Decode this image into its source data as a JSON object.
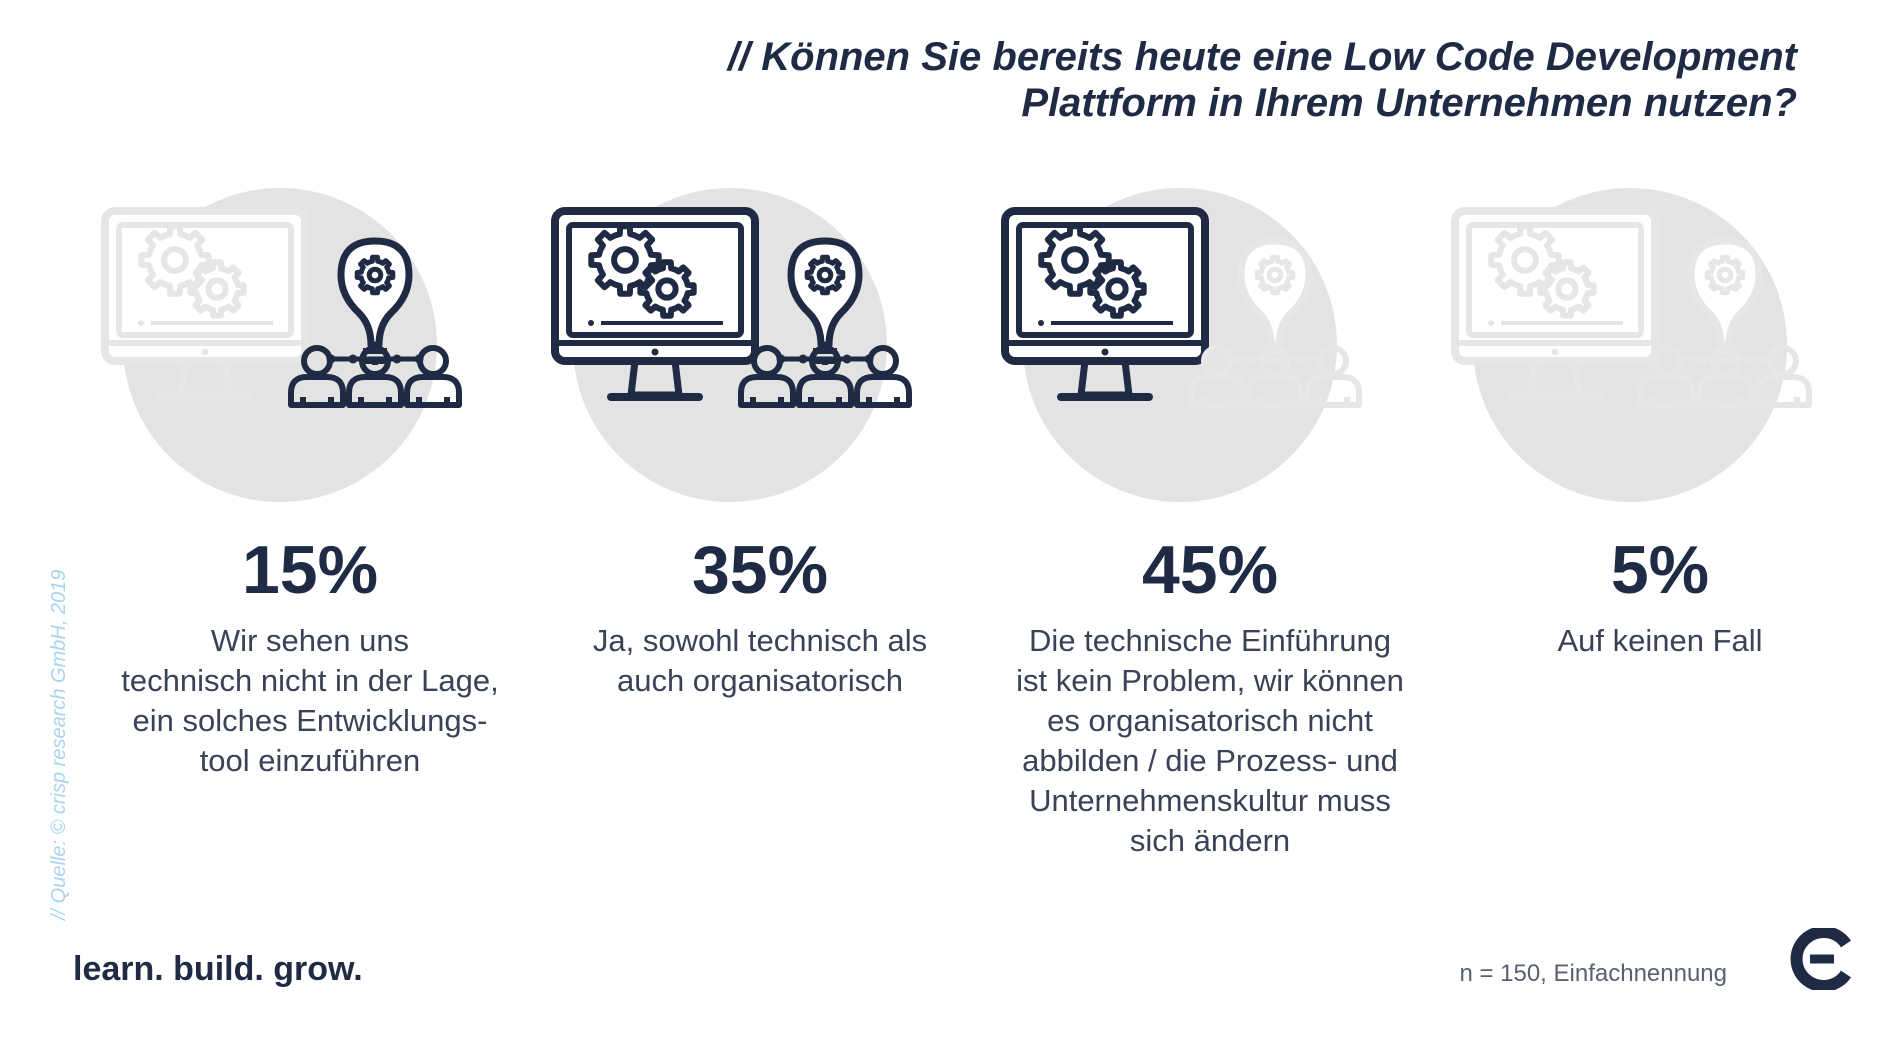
{
  "header": {
    "title_line1": "// Können Sie bereits heute eine Low Code Development",
    "title_line2": "Plattform in Ihrem Unternehmen nutzen?"
  },
  "chart_data": {
    "type": "bar",
    "title": "// Können Sie bereits heute eine Low Code Development Plattform in Ihrem Unternehmen nutzen?",
    "unit": "%",
    "categories": [
      "Wir sehen uns technisch nicht in der Lage, ein solches Entwicklungs-tool einzuführen",
      "Ja, sowohl technisch als auch organisatorisch",
      "Die technische Einführung ist kein Problem, wir können es organisatorisch nicht abbilden / die Prozess- und Unternehmenskultur muss sich ändern",
      "Auf keinen Fall"
    ],
    "values": [
      15,
      35,
      45,
      5
    ],
    "items": [
      {
        "percent": "15%",
        "label": "Wir sehen uns\ntechnisch nicht in der Lage,\nein solches Entwicklungs-\ntool einzuführen",
        "highlight": {
          "monitor": false,
          "bulb": true,
          "people": true
        }
      },
      {
        "percent": "35%",
        "label": "Ja, sowohl technisch als\nauch organisatorisch",
        "highlight": {
          "monitor": true,
          "bulb": true,
          "people": true
        }
      },
      {
        "percent": "45%",
        "label": "Die technische Einführung\nist kein Problem, wir können\nes organisatorisch nicht\nabbilden / die Prozess- und\nUnternehmenskultur muss\nsich ändern",
        "highlight": {
          "monitor": true,
          "bulb": false,
          "people": false
        }
      },
      {
        "percent": "5%",
        "label": "Auf keinen Fall",
        "highlight": {
          "monitor": false,
          "bulb": false,
          "people": false
        }
      }
    ]
  },
  "footer": {
    "source": "// Quelle: © crisp research GmbH, 2019",
    "slogan": "learn. build. grow.",
    "sample": "n = 150, Einfachnennung"
  },
  "colors": {
    "dark": "#1f2a44",
    "muted": "#e6e6e6",
    "circle": "#e3e3e3",
    "source": "#a9d3ee",
    "white": "#ffffff"
  },
  "icons": [
    "monitor-gears-icon",
    "lightbulb-gear-icon",
    "people-network-icon",
    "brand-logo-icon"
  ]
}
